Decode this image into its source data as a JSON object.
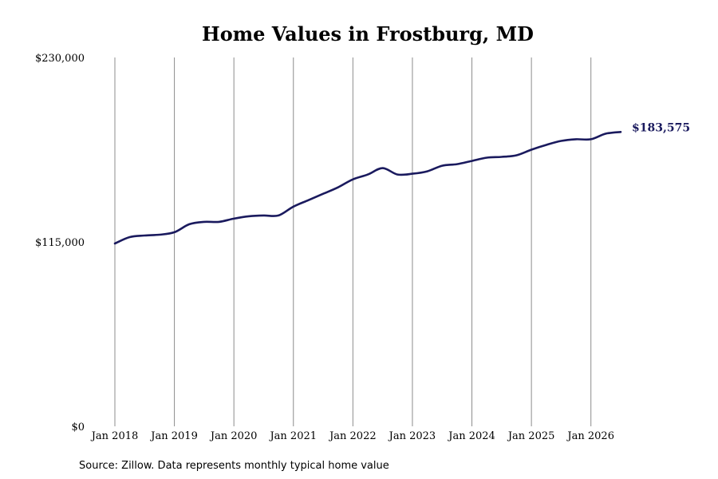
{
  "chart_data": {
    "type": "line",
    "title": "Home Values in Frostburg, MD",
    "xlabel": "",
    "ylabel": "",
    "ylim": [
      0,
      230000
    ],
    "y_ticks": [
      "$0",
      "$115,000",
      "$230,000"
    ],
    "y_tick_values": [
      0,
      115000,
      230000
    ],
    "x_ticks": [
      "Jan 2018",
      "Jan 2019",
      "Jan 2020",
      "Jan 2021",
      "Jan 2022",
      "Jan 2023",
      "Jan 2024",
      "Jan 2025",
      "Jan 2026"
    ],
    "x_tick_values": [
      2018,
      2019,
      2020,
      2021,
      2022,
      2023,
      2024,
      2025,
      2026
    ],
    "xlim": [
      2018,
      2026.5
    ],
    "grid": "vertical",
    "end_label": "$183,575",
    "series": [
      {
        "color": "#1a1a5e",
        "points": [
          [
            2018.0,
            114000
          ],
          [
            2018.25,
            118000
          ],
          [
            2018.5,
            119000
          ],
          [
            2018.75,
            119500
          ],
          [
            2019.0,
            121000
          ],
          [
            2019.25,
            126000
          ],
          [
            2019.5,
            127500
          ],
          [
            2019.75,
            127500
          ],
          [
            2020.0,
            129500
          ],
          [
            2020.25,
            131000
          ],
          [
            2020.5,
            131500
          ],
          [
            2020.75,
            131500
          ],
          [
            2021.0,
            137000
          ],
          [
            2021.25,
            141000
          ],
          [
            2021.5,
            145000
          ],
          [
            2021.75,
            149000
          ],
          [
            2022.0,
            154000
          ],
          [
            2022.25,
            157000
          ],
          [
            2022.5,
            161000
          ],
          [
            2022.75,
            157000
          ],
          [
            2023.0,
            157500
          ],
          [
            2023.25,
            159000
          ],
          [
            2023.5,
            162500
          ],
          [
            2023.75,
            163500
          ],
          [
            2024.0,
            165500
          ],
          [
            2024.25,
            167500
          ],
          [
            2024.5,
            168000
          ],
          [
            2024.75,
            169000
          ],
          [
            2025.0,
            172500
          ],
          [
            2025.25,
            175500
          ],
          [
            2025.5,
            178000
          ],
          [
            2025.75,
            179000
          ],
          [
            2026.0,
            179000
          ],
          [
            2026.25,
            182500
          ],
          [
            2026.5,
            183575
          ]
        ]
      }
    ]
  },
  "source_note": "Source: Zillow. Data represents monthly typical home value"
}
